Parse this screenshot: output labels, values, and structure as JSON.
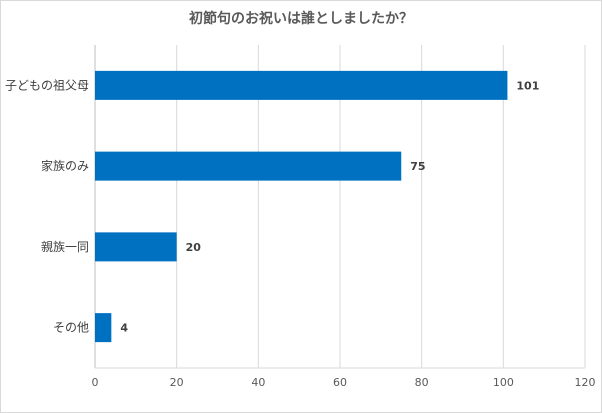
{
  "chart_data": {
    "type": "bar",
    "orientation": "horizontal",
    "title": "初節句のお祝いは誰としましたか？",
    "categories": [
      "子どもの祖父母",
      "家族のみ",
      "親族一同",
      "その他"
    ],
    "values": [
      101,
      75,
      20,
      4
    ],
    "xlim": [
      0,
      120
    ],
    "x_ticks": [
      "0",
      "20",
      "40",
      "60",
      "80",
      "100",
      "120"
    ],
    "xlabel": "",
    "ylabel": "",
    "grid": "vertical",
    "bar_color": "#0070c0"
  }
}
